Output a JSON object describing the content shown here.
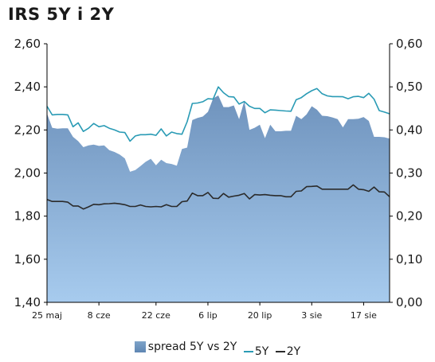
{
  "title": "IRS 5Y i 2Y",
  "colors": {
    "spread_top": "#6f93bd",
    "spread_bottom": "#a7cbee",
    "series_5y": "#2a9bb5",
    "series_2y": "#2b2b2b",
    "axis": "#000000"
  },
  "chart_data": {
    "type": "line",
    "x_ticks": [
      "25 maj",
      "8 cze",
      "22 cze",
      "6 lip",
      "20 lip",
      "3 sie",
      "17 sie"
    ],
    "left_axis": {
      "ticks": [
        "1,40",
        "1,60",
        "1,80",
        "2,00",
        "2,20",
        "2,40",
        "2,60"
      ],
      "range": [
        1.4,
        2.6
      ]
    },
    "right_axis": {
      "ticks": [
        "0,00",
        "0,10",
        "0,20",
        "0,30",
        "0,40",
        "0,50",
        "0,60"
      ],
      "range": [
        0.0,
        0.6
      ]
    },
    "x_range": [
      0,
      66
    ],
    "tick_positions": [
      0,
      10,
      21,
      31,
      41,
      51,
      61
    ],
    "series": [
      {
        "name": "spread 5Y vs 2Y",
        "type": "area",
        "axis": "right",
        "values": [
          0.438,
          0.405,
          0.403,
          0.404,
          0.404,
          0.384,
          0.374,
          0.36,
          0.364,
          0.366,
          0.363,
          0.364,
          0.353,
          0.349,
          0.343,
          0.334,
          0.303,
          0.307,
          0.316,
          0.326,
          0.333,
          0.318,
          0.331,
          0.323,
          0.321,
          0.317,
          0.356,
          0.359,
          0.423,
          0.428,
          0.431,
          0.442,
          0.473,
          0.48,
          0.453,
          0.453,
          0.457,
          0.425,
          0.467,
          0.4,
          0.405,
          0.412,
          0.381,
          0.412,
          0.397,
          0.397,
          0.398,
          0.398,
          0.433,
          0.425,
          0.436,
          0.455,
          0.447,
          0.433,
          0.432,
          0.429,
          0.425,
          0.406,
          0.425,
          0.425,
          0.426,
          0.43,
          0.421,
          0.384,
          0.384,
          0.383,
          0.38
        ]
      },
      {
        "name": "5Y",
        "type": "line",
        "axis": "left",
        "values": [
          2.31,
          2.27,
          2.272,
          2.272,
          2.27,
          2.215,
          2.233,
          2.193,
          2.208,
          2.23,
          2.215,
          2.22,
          2.208,
          2.2,
          2.19,
          2.188,
          2.148,
          2.172,
          2.178,
          2.178,
          2.18,
          2.175,
          2.205,
          2.172,
          2.19,
          2.183,
          2.18,
          2.238,
          2.323,
          2.325,
          2.331,
          2.345,
          2.343,
          2.4,
          2.373,
          2.355,
          2.353,
          2.32,
          2.332,
          2.31,
          2.3,
          2.3,
          2.28,
          2.293,
          2.292,
          2.29,
          2.288,
          2.287,
          2.34,
          2.35,
          2.368,
          2.382,
          2.392,
          2.368,
          2.358,
          2.355,
          2.355,
          2.354,
          2.345,
          2.354,
          2.356,
          2.35,
          2.37,
          2.343,
          2.29,
          2.283,
          2.275
        ]
      },
      {
        "name": "2Y",
        "type": "line",
        "axis": "left",
        "values": [
          1.877,
          1.868,
          1.868,
          1.868,
          1.865,
          1.847,
          1.847,
          1.833,
          1.843,
          1.855,
          1.853,
          1.857,
          1.858,
          1.86,
          1.857,
          1.853,
          1.845,
          1.845,
          1.852,
          1.845,
          1.843,
          1.845,
          1.843,
          1.853,
          1.845,
          1.845,
          1.867,
          1.87,
          1.907,
          1.895,
          1.895,
          1.91,
          1.883,
          1.882,
          1.905,
          1.888,
          1.893,
          1.897,
          1.905,
          1.88,
          1.9,
          1.898,
          1.9,
          1.897,
          1.895,
          1.895,
          1.89,
          1.89,
          1.915,
          1.917,
          1.937,
          1.938,
          1.94,
          1.925,
          1.925,
          1.925,
          1.925,
          1.925,
          1.925,
          1.945,
          1.925,
          1.923,
          1.915,
          1.935,
          1.913,
          1.912,
          1.89
        ]
      }
    ],
    "grid": false,
    "legend_position": "bottom"
  },
  "legend": {
    "spread": "spread 5Y vs 2Y",
    "y5": "5Y",
    "y2": "2Y"
  }
}
